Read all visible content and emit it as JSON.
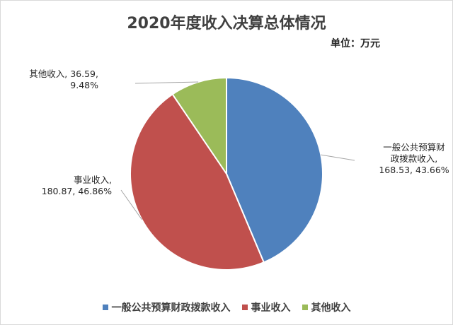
{
  "chart_data": {
    "type": "pie",
    "title": "2020年度收入决算总体情况",
    "unit_label": "单位：万元",
    "categories": [
      "一般公共预算财政拨款收入",
      "事业收入",
      "其他收入"
    ],
    "values": [
      168.53,
      180.87,
      36.59
    ],
    "percentages": [
      "43.66%",
      "46.86%",
      "9.48%"
    ],
    "data_labels": [
      {
        "lines": [
          "一般公共预算财",
          "政拨款收入,",
          "168.53, 43.66%"
        ]
      },
      {
        "lines": [
          "事业收入,",
          "180.87, 46.86%"
        ]
      },
      {
        "lines": [
          "其他收入, 36.59,",
          "9.48%"
        ]
      }
    ],
    "colors": [
      "#4f81bd",
      "#c0504d",
      "#9bbb59"
    ],
    "legend_placement": "bottom"
  }
}
